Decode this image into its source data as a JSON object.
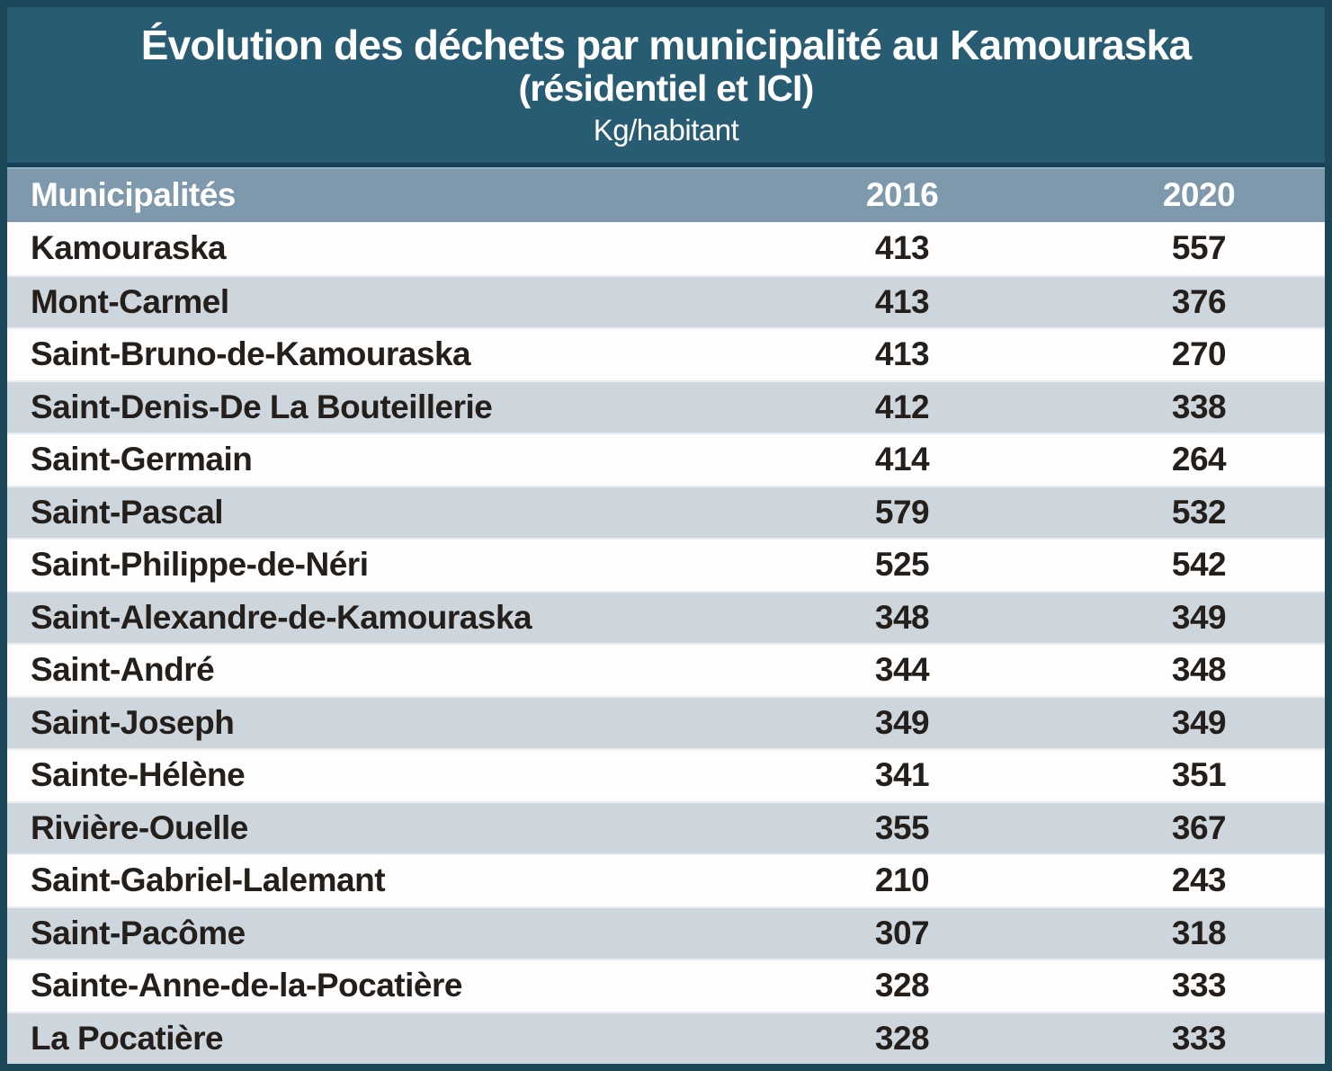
{
  "header": {
    "title_line1": "Évolution des déchets par municipalité au Kamouraska",
    "title_line2": "(résidentiel et ICI)",
    "unit_label": "Kg/habitant"
  },
  "table": {
    "columns": {
      "municipality": "Municipalités",
      "year1": "2016",
      "year2": "2020"
    },
    "rows": [
      {
        "municipality": "Kamouraska",
        "y2016": "413",
        "y2020": "557"
      },
      {
        "municipality": "Mont-Carmel",
        "y2016": "413",
        "y2020": "376"
      },
      {
        "municipality": "Saint-Bruno-de-Kamouraska",
        "y2016": "413",
        "y2020": "270"
      },
      {
        "municipality": "Saint-Denis-De La Bouteillerie",
        "y2016": "412",
        "y2020": "338"
      },
      {
        "municipality": "Saint-Germain",
        "y2016": "414",
        "y2020": "264"
      },
      {
        "municipality": "Saint-Pascal",
        "y2016": "579",
        "y2020": "532"
      },
      {
        "municipality": "Saint-Philippe-de-Néri",
        "y2016": "525",
        "y2020": "542"
      },
      {
        "municipality": "Saint-Alexandre-de-Kamouraska",
        "y2016": "348",
        "y2020": "349"
      },
      {
        "municipality": "Saint-André",
        "y2016": "344",
        "y2020": "348"
      },
      {
        "municipality": "Saint-Joseph",
        "y2016": "349",
        "y2020": "349"
      },
      {
        "municipality": "Sainte-Hélène",
        "y2016": "341",
        "y2020": "351"
      },
      {
        "municipality": "Rivière-Ouelle",
        "y2016": "355",
        "y2020": "367"
      },
      {
        "municipality": "Saint-Gabriel-Lalemant",
        "y2016": "210",
        "y2020": "243"
      },
      {
        "municipality": "Saint-Pacôme",
        "y2016": "307",
        "y2020": "318"
      },
      {
        "municipality": "Sainte-Anne-de-la-Pocatière",
        "y2016": "328",
        "y2020": "333"
      },
      {
        "municipality": "La Pocatière",
        "y2016": "328",
        "y2020": "333"
      }
    ]
  },
  "colors": {
    "frame_border": "#1B4759",
    "title_background": "#275C73",
    "header_row_background": "#7D99AB",
    "header_top_strip": "#16405A",
    "header_highlight_line": "#8FB3C2",
    "row_background": "#FDFDFD",
    "row_alt_background": "#CDD6DD",
    "row_text": "#241F1A",
    "header_text": "#FFFFFF"
  },
  "chart_data": {
    "type": "table",
    "title": "Évolution des déchets par municipalité au Kamouraska (résidentiel et ICI)",
    "unit": "Kg/habitant",
    "columns": [
      "Municipalités",
      "2016",
      "2020"
    ],
    "rows": [
      [
        "Kamouraska",
        413,
        557
      ],
      [
        "Mont-Carmel",
        413,
        376
      ],
      [
        "Saint-Bruno-de-Kamouraska",
        413,
        270
      ],
      [
        "Saint-Denis-De La Bouteillerie",
        412,
        338
      ],
      [
        "Saint-Germain",
        414,
        264
      ],
      [
        "Saint-Pascal",
        579,
        532
      ],
      [
        "Saint-Philippe-de-Néri",
        525,
        542
      ],
      [
        "Saint-Alexandre-de-Kamouraska",
        348,
        349
      ],
      [
        "Saint-André",
        344,
        348
      ],
      [
        "Saint-Joseph",
        349,
        349
      ],
      [
        "Sainte-Hélène",
        341,
        351
      ],
      [
        "Rivière-Ouelle",
        355,
        367
      ],
      [
        "Saint-Gabriel-Lalemant",
        210,
        243
      ],
      [
        "Saint-Pacôme",
        307,
        318
      ],
      [
        "Sainte-Anne-de-la-Pocatière",
        328,
        333
      ],
      [
        "La Pocatière",
        328,
        333
      ]
    ]
  }
}
